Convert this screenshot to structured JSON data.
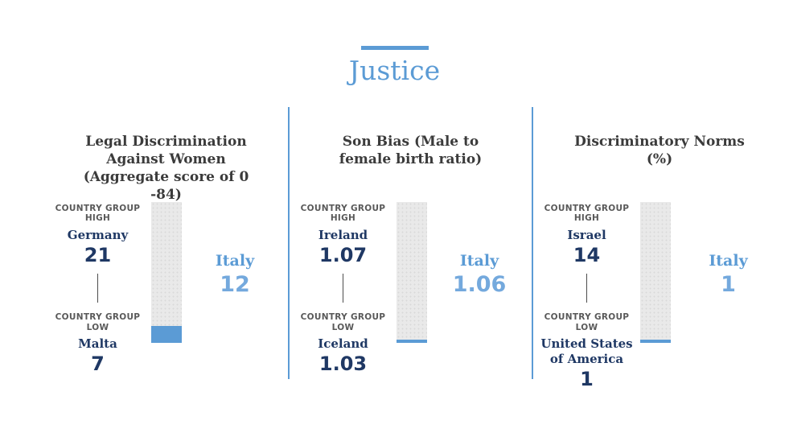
{
  "page": {
    "title": "Justice"
  },
  "colors": {
    "accent": "#5b9bd5",
    "accent_light": "#74a9dd",
    "navy": "#1f3864",
    "label_gray": "#595959",
    "title_dark": "#3b3b3b",
    "bar_track": "#e9e9e9"
  },
  "panels": [
    {
      "title": "Legal Discrimination Against Women (Aggregate score of 0 -84)",
      "group_high_label": "COUNTRY GROUP HIGH",
      "group_high_country": "Germany",
      "group_high_value": "21",
      "group_low_label": "COUNTRY GROUP LOW",
      "group_low_country": "Malta",
      "group_low_value": "7",
      "highlight_country": "Italy",
      "highlight_value": "12",
      "bar_fill_percent": 12
    },
    {
      "title": "Son Bias (Male to female birth ratio)",
      "group_high_label": "COUNTRY GROUP HIGH",
      "group_high_country": "Ireland",
      "group_high_value": "1.07",
      "group_low_label": "COUNTRY GROUP LOW",
      "group_low_country": "Iceland",
      "group_low_value": "1.03",
      "highlight_country": "Italy",
      "highlight_value": "1.06",
      "bar_fill_percent": 2.3
    },
    {
      "title": "Discriminatory Norms (%)",
      "group_high_label": "COUNTRY GROUP HIGH",
      "group_high_country": "Israel",
      "group_high_value": "14",
      "group_low_label": "COUNTRY GROUP LOW",
      "group_low_country": "United States of America",
      "group_low_value": "1",
      "highlight_country": "Italy",
      "highlight_value": "1",
      "bar_fill_percent": 2.3
    }
  ],
  "chart_data": [
    {
      "type": "bar",
      "title": "Legal Discrimination Against Women (Aggregate score of 0 -84)",
      "categories": [
        "Country Group High (Germany)",
        "Country Group Low (Malta)",
        "Italy"
      ],
      "values": [
        21,
        7,
        12
      ],
      "highlight_series": "Italy",
      "layout": "vertical range bar, Italy value filled blue from bottom of gray track",
      "legend_position": "none",
      "grid": false
    },
    {
      "type": "bar",
      "title": "Son Bias (Male to female birth ratio)",
      "categories": [
        "Country Group High (Ireland)",
        "Country Group Low (Iceland)",
        "Italy"
      ],
      "values": [
        1.07,
        1.03,
        1.06
      ],
      "highlight_series": "Italy",
      "layout": "vertical range bar, thin blue fill at bottom of gray track",
      "legend_position": "none",
      "grid": false
    },
    {
      "type": "bar",
      "title": "Discriminatory Norms (%)",
      "categories": [
        "Country Group High (Israel)",
        "Country Group Low (United States of America)",
        "Italy"
      ],
      "values": [
        14,
        1,
        1
      ],
      "highlight_series": "Italy",
      "layout": "vertical range bar, thin blue fill at bottom of gray track",
      "legend_position": "none",
      "grid": false
    }
  ]
}
